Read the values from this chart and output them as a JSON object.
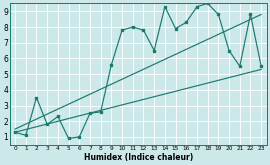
{
  "xlabel": "Humidex (Indice chaleur)",
  "bg_color": "#cce8e8",
  "grid_color": "#ffffff",
  "line_color": "#1a7a6e",
  "xlim": [
    -0.5,
    23.5
  ],
  "ylim": [
    0.5,
    9.5
  ],
  "xticks": [
    0,
    1,
    2,
    3,
    4,
    5,
    6,
    7,
    8,
    9,
    10,
    11,
    12,
    13,
    14,
    15,
    16,
    17,
    18,
    19,
    20,
    21,
    22,
    23
  ],
  "yticks": [
    1,
    2,
    3,
    4,
    5,
    6,
    7,
    8,
    9
  ],
  "main_x": [
    0,
    1,
    2,
    3,
    4,
    5,
    6,
    7,
    8,
    9,
    10,
    11,
    12,
    13,
    14,
    15,
    16,
    17,
    18,
    19,
    20,
    21,
    22,
    23
  ],
  "main_y": [
    1.3,
    1.1,
    3.5,
    1.8,
    2.3,
    0.9,
    1.0,
    2.5,
    2.6,
    5.6,
    7.8,
    8.0,
    7.8,
    6.5,
    9.3,
    7.9,
    8.3,
    9.3,
    9.5,
    8.8,
    6.5,
    5.5,
    8.8,
    5.5
  ],
  "trend1_x": [
    0,
    23
  ],
  "trend1_y": [
    1.3,
    5.3
  ],
  "trend2_x": [
    0,
    23
  ],
  "trend2_y": [
    1.5,
    8.8
  ]
}
